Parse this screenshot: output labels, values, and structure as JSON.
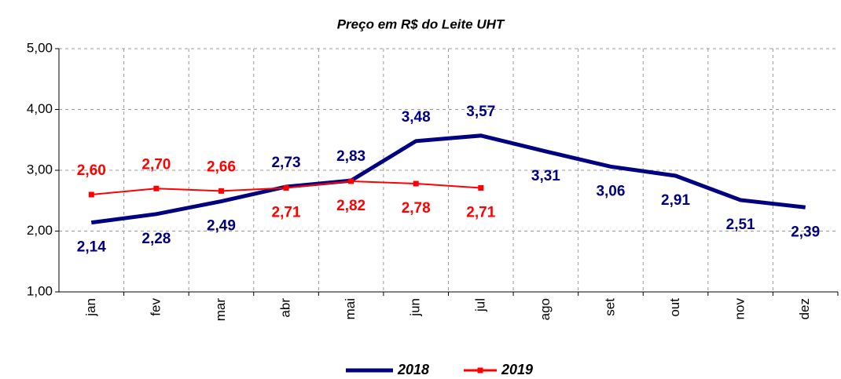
{
  "chart_data": {
    "type": "line",
    "title": "Preço em R$ do Leite UHT",
    "categories": [
      "jan",
      "fev",
      "mar",
      "abr",
      "mai",
      "jun",
      "jul",
      "ago",
      "set",
      "out",
      "nov",
      "dez"
    ],
    "series": [
      {
        "name": "2018",
        "color": "#000080",
        "values": [
          2.14,
          2.28,
          2.49,
          2.73,
          2.83,
          3.48,
          3.57,
          3.31,
          3.06,
          2.91,
          2.51,
          2.39
        ],
        "value_labels": [
          "2,14",
          "2,28",
          "2,49",
          "2,73",
          "2,83",
          "3,48",
          "3,57",
          "3,31",
          "3,06",
          "2,91",
          "2,51",
          "2,39"
        ]
      },
      {
        "name": "2019",
        "color": "#ff0000",
        "values": [
          2.6,
          2.7,
          2.66,
          2.71,
          2.82,
          2.78,
          2.71,
          null,
          null,
          null,
          null,
          null
        ],
        "value_labels": [
          "2,60",
          "2,70",
          "2,66",
          "2,71",
          "2,82",
          "2,78",
          "2,71",
          null,
          null,
          null,
          null,
          null
        ]
      }
    ],
    "ylim": [
      1,
      5
    ],
    "yticks": [
      {
        "value": 1,
        "label": "1,00"
      },
      {
        "value": 2,
        "label": "2,00"
      },
      {
        "value": 3,
        "label": "3,00"
      },
      {
        "value": 4,
        "label": "4,00"
      },
      {
        "value": 5,
        "label": "5,00"
      }
    ],
    "grid": true,
    "legend": "bottom"
  }
}
